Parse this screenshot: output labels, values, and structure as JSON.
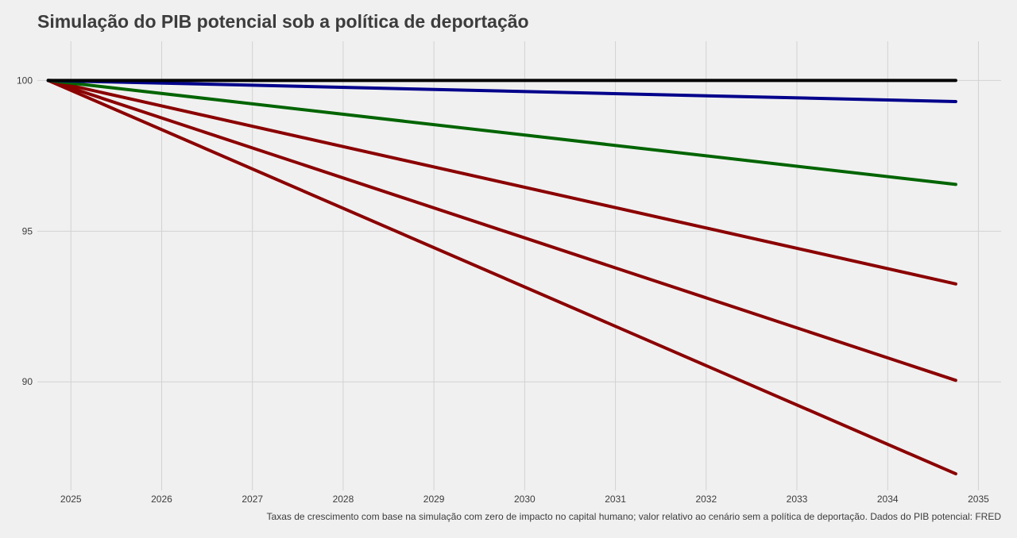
{
  "chart_data": {
    "type": "line",
    "title": "Simulação do PIB potencial sob a política de deportação",
    "caption": "Taxas de crescimento com base na simulação com zero de impacto no capital humano; valor relativo ao cenário sem a política de deportação. Dados do PIB potencial: FRED",
    "xlabel": "",
    "ylabel": "",
    "xlim": [
      2024.63,
      2035.25
    ],
    "ylim": [
      86.4,
      101.3
    ],
    "x_ticks": [
      2025,
      2026,
      2027,
      2028,
      2029,
      2030,
      2031,
      2032,
      2033,
      2034,
      2035
    ],
    "y_ticks": [
      90,
      95,
      100
    ],
    "grid": true,
    "legend": "none",
    "series": [
      {
        "color": "#000000",
        "x": [
          2024.75,
          2034.75
        ],
        "values": [
          100.0,
          100.0
        ]
      },
      {
        "color": "#00008b",
        "x": [
          2024.75,
          2034.75
        ],
        "values": [
          100.0,
          99.3
        ]
      },
      {
        "color": "#006400",
        "x": [
          2024.75,
          2034.75
        ],
        "values": [
          100.0,
          96.55
        ]
      },
      {
        "color": "#8b0000",
        "x": [
          2024.75,
          2034.75
        ],
        "values": [
          100.0,
          93.25
        ]
      },
      {
        "color": "#8b0000",
        "x": [
          2024.75,
          2034.75
        ],
        "values": [
          100.0,
          90.05
        ]
      },
      {
        "color": "#8b0000",
        "x": [
          2024.75,
          2034.75
        ],
        "values": [
          100.0,
          86.95
        ]
      }
    ]
  }
}
